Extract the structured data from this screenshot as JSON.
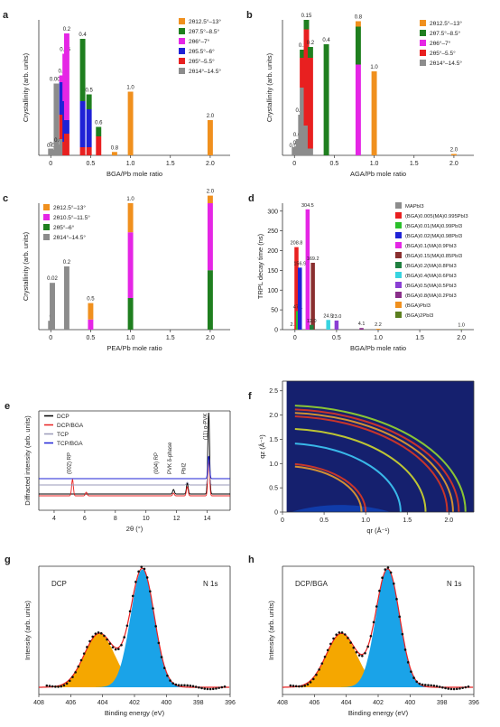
{
  "chart_data": [
    {
      "panel": "a",
      "type": "bar",
      "subtype": "stacked",
      "xlabel": "BGA/Pb mole ratio",
      "ylabel": "Crystallinity (arb. units)",
      "xlim": [
        -0.15,
        2.25
      ],
      "xticks": [
        "0",
        "0.5",
        "1.0",
        "1.5",
        "2.0"
      ],
      "legend_position": "top-right",
      "legend": [
        {
          "label": "2θ12.5°–13°",
          "color": "#f0901e"
        },
        {
          "label": "2θ7.5°–8.5°",
          "color": "#1f7f1f"
        },
        {
          "label": "2θ6°–7°",
          "color": "#e526e5"
        },
        {
          "label": "2θ5.5°–6°",
          "color": "#1f22d6"
        },
        {
          "label": "2θ5°–5.5°",
          "color": "#e82020"
        },
        {
          "label": "2θ14°–14.5°",
          "color": "#8c8c8c"
        }
      ],
      "series_order": [
        "2θ14°–14.5°",
        "2θ5°–5.5°",
        "2θ5.5°–6°",
        "2θ6°–7°",
        "2θ7.5°–8.5°",
        "2θ12.5°–13°"
      ],
      "ymax": 1.0,
      "bars": [
        {
          "label": "0",
          "x": 0.0,
          "stack": [
            0.05,
            0,
            0,
            0,
            0,
            0
          ]
        },
        {
          "label": "0.02",
          "x": 0.02,
          "stack": [
            0.04,
            0,
            0,
            0,
            0,
            0
          ]
        },
        {
          "label": "0.005",
          "x": 0.07,
          "stack": [
            0.53,
            0,
            0,
            0,
            0,
            0
          ]
        },
        {
          "label": "0.01",
          "x": 0.11,
          "stack": [
            0.08,
            0,
            0,
            0,
            0,
            0
          ]
        },
        {
          "label": "0.1",
          "x": 0.14,
          "stack": [
            0.12,
            0.18,
            0.24,
            0.05,
            0,
            0
          ]
        },
        {
          "label": "0.15",
          "x": 0.18,
          "stack": [
            0,
            0.1,
            0.3,
            0.35,
            0,
            0
          ]
        },
        {
          "label": "0.2",
          "x": 0.2,
          "stack": [
            0,
            0.16,
            0.1,
            0.64,
            0,
            0
          ]
        },
        {
          "label": "0.4",
          "x": 0.4,
          "stack": [
            0,
            0.06,
            0.34,
            0,
            0.46,
            0
          ]
        },
        {
          "label": "0.5",
          "x": 0.48,
          "stack": [
            0,
            0.06,
            0.28,
            0,
            0.11,
            0
          ]
        },
        {
          "label": "0.6",
          "x": 0.6,
          "stack": [
            0,
            0.14,
            0,
            0,
            0.07,
            0
          ]
        },
        {
          "label": "0.8",
          "x": 0.8,
          "stack": [
            0,
            0,
            0,
            0,
            0,
            0.025
          ]
        },
        {
          "label": "1.0",
          "x": 1.0,
          "stack": [
            0,
            0,
            0,
            0,
            0,
            0.47
          ]
        },
        {
          "label": "2.0",
          "x": 2.0,
          "stack": [
            0,
            0,
            0,
            0,
            0,
            0.26
          ]
        }
      ]
    },
    {
      "panel": "b",
      "type": "bar",
      "subtype": "stacked",
      "xlabel": "AGA/Pb mole ratio",
      "ylabel": "Crystallinity (arb. units)",
      "xlim": [
        -0.15,
        2.25
      ],
      "xticks": [
        "0",
        "0.5",
        "1.0",
        "1.5",
        "2.0"
      ],
      "legend_position": "top-right",
      "legend": [
        {
          "label": "2θ12.5°–13°",
          "color": "#f0901e"
        },
        {
          "label": "2θ7.5°–8.5°",
          "color": "#1f7f1f"
        },
        {
          "label": "2θ6°–7°",
          "color": "#e526e5"
        },
        {
          "label": "2θ5°–5.5°",
          "color": "#e82020"
        },
        {
          "label": "2θ14°–14.5°",
          "color": "#8c8c8c"
        }
      ],
      "series_order": [
        "2θ14°–14.5°",
        "2θ5°–5.5°",
        "2θ6°–7°",
        "2θ7.5°–8.5°",
        "2θ12.5°–13°"
      ],
      "ymax": 1.0,
      "bars": [
        {
          "label": "0",
          "x": 0.0,
          "stack": [
            0.06,
            0,
            0,
            0,
            0
          ]
        },
        {
          "label": "0.005",
          "x": 0.02,
          "stack": [
            0.04,
            0,
            0,
            0,
            0
          ]
        },
        {
          "label": "0.01",
          "x": 0.05,
          "stack": [
            0.12,
            0,
            0,
            0,
            0
          ]
        },
        {
          "label": "0.02",
          "x": 0.08,
          "stack": [
            0.3,
            0,
            0,
            0,
            0
          ]
        },
        {
          "label": "0.1",
          "x": 0.1,
          "stack": [
            0.5,
            0.22,
            0,
            0.06,
            0
          ]
        },
        {
          "label": "0.15",
          "x": 0.15,
          "stack": [
            0.22,
            0.71,
            0,
            0.07,
            0
          ]
        },
        {
          "label": "0.2",
          "x": 0.2,
          "stack": [
            0.05,
            0.67,
            0,
            0.08,
            0
          ]
        },
        {
          "label": "0.4",
          "x": 0.4,
          "stack": [
            0,
            0,
            0,
            0.82,
            0
          ]
        },
        {
          "label": "0.8",
          "x": 0.8,
          "stack": [
            0,
            0,
            0.67,
            0.28,
            0.04
          ]
        },
        {
          "label": "1.0",
          "x": 1.0,
          "stack": [
            0,
            0,
            0,
            0,
            0.62
          ]
        },
        {
          "label": "2.0",
          "x": 2.0,
          "stack": [
            0,
            0,
            0,
            0,
            0.01
          ]
        }
      ]
    },
    {
      "panel": "c",
      "type": "bar",
      "subtype": "stacked",
      "xlabel": "PEA/Pb mole ratio",
      "ylabel": "Crystallinity (arb. units)",
      "xlim": [
        -0.15,
        2.25
      ],
      "xticks": [
        "0",
        "0.5",
        "1.0",
        "1.5",
        "2.0"
      ],
      "legend_position": "top-left",
      "legend": [
        {
          "label": "2θ12.5°–13°",
          "color": "#f0901e"
        },
        {
          "label": "2θ10.5°–11.5°",
          "color": "#e526e5"
        },
        {
          "label": "2θ5°–6°",
          "color": "#1f7f1f"
        },
        {
          "label": "2θ14°–14.5°",
          "color": "#8c8c8c"
        }
      ],
      "series_order": [
        "2θ14°–14.5°",
        "2θ5°–6°",
        "2θ10.5°–11.5°",
        "2θ12.5°–13°"
      ],
      "ymax": 1.0,
      "bars": [
        {
          "label": "0",
          "x": 0.0,
          "stack": [
            0.07,
            0,
            0,
            0
          ]
        },
        {
          "label": "0.02",
          "x": 0.02,
          "stack": [
            0.37,
            0,
            0,
            0
          ]
        },
        {
          "label": "0.2",
          "x": 0.2,
          "stack": [
            0.5,
            0,
            0,
            0
          ]
        },
        {
          "label": "0.5",
          "x": 0.5,
          "stack": [
            0,
            0,
            0.08,
            0.13
          ]
        },
        {
          "label": "1.0",
          "x": 1.0,
          "stack": [
            0,
            0.25,
            0.52,
            0.23
          ]
        },
        {
          "label": "2.0",
          "x": 2.0,
          "stack": [
            0,
            0.47,
            0.53,
            0.06
          ]
        }
      ]
    },
    {
      "panel": "d",
      "type": "bar",
      "xlabel": "BGA/Pb mole ratio",
      "ylabel": "TRPL decay time (ns)",
      "xlim": [
        -0.15,
        2.15
      ],
      "ylim": [
        0,
        320
      ],
      "yticks": [
        "0",
        "50",
        "100",
        "150",
        "200",
        "250",
        "300"
      ],
      "xticks": [
        "0",
        "0.5",
        "1.0",
        "1.5",
        "2.0"
      ],
      "legend_position": "top-right",
      "bars": [
        {
          "sub": "MAPbI3",
          "x": 0.0,
          "value": 2.31,
          "label": "2.31",
          "color": "#8c8c8c"
        },
        {
          "sub": "(BGA)0.005(MA)0.995PbI3",
          "x": 0.005,
          "value": 208.8,
          "label": "208.8",
          "color": "#e82020"
        },
        {
          "sub": "(BGA)0.01(MA)0.99PbI3",
          "x": 0.01,
          "value": 47.1,
          "label": "47.1",
          "color": "#2ac02a"
        },
        {
          "sub": "(BGA)0.02(MA)0.98PbI3",
          "x": 0.02,
          "value": 156.9,
          "label": "156.9",
          "color": "#1f22d6"
        },
        {
          "sub": "(BGA)0.1(MA)0.9PbI3",
          "x": 0.1,
          "value": 304.5,
          "label": "304.5",
          "color": "#e526e5"
        },
        {
          "sub": "(BGA)0.15(MA)0.85PbI3",
          "x": 0.15,
          "value": 169.2,
          "label": "169.2",
          "color": "#8a2f2f"
        },
        {
          "sub": "(BGA)0.2(MA)0.8PbI3",
          "x": 0.2,
          "value": 12.0,
          "label": "12.0",
          "color": "#1f7f3f"
        },
        {
          "sub": "(BGA)0.4(MA)0.6PbI3",
          "x": 0.4,
          "value": 24.5,
          "label": "24.5",
          "color": "#38d4e0"
        },
        {
          "sub": "(BGA)0.5(MA)0.5PbI3",
          "x": 0.5,
          "value": 23.0,
          "label": "23.0",
          "color": "#8a3fd4"
        },
        {
          "sub": "(BGA)0.8(MA)0.2PbI3",
          "x": 0.8,
          "value": 4.1,
          "label": "4.1",
          "color": "#8a2f8a"
        },
        {
          "sub": "(BGA)PbI3",
          "x": 1.0,
          "value": 2.2,
          "label": "2.2",
          "color": "#f0901e"
        },
        {
          "sub": "(BGA)2PbI3",
          "x": 2.0,
          "value": 1.0,
          "label": "1.0",
          "color": "#5b7f1f"
        }
      ]
    },
    {
      "panel": "e",
      "type": "line",
      "xlabel": "2θ (°)",
      "ylabel": "Diffracted intensity (arb. units)",
      "xlim": [
        3,
        15.5
      ],
      "xticks": [
        "4",
        "6",
        "8",
        "10",
        "12",
        "14"
      ],
      "legend_position": "top-left",
      "series": [
        {
          "name": "DCP",
          "color": "#000000"
        },
        {
          "name": "DCP/BGA",
          "color": "#e82020"
        },
        {
          "name": "TCP",
          "color": "#9a9ab8"
        },
        {
          "name": "TCP/BGA",
          "color": "#1f22d6"
        }
      ],
      "annotations": [
        "(002) RP",
        "(004) RP",
        "PVK δ-phase",
        "PbI2",
        "(11) α-PVK"
      ],
      "peaks_theta": [
        5.2,
        10.9,
        11.8,
        12.7,
        14.1
      ]
    },
    {
      "panel": "f",
      "type": "heatmap",
      "xlabel": "qr (Å⁻¹)",
      "ylabel": "qz (Å⁻¹)",
      "xlim": [
        0,
        2.3
      ],
      "ylim": [
        0,
        2.7
      ],
      "xticks": [
        "0",
        "0.5",
        "1.0",
        "1.5",
        "2.0"
      ],
      "yticks": [
        "0",
        "0.5",
        "1.0",
        "1.5",
        "2.0",
        "2.5"
      ],
      "rings_q": [
        0.95,
        1.0,
        1.42,
        1.72,
        1.98,
        2.05,
        2.12,
        2.2
      ]
    },
    {
      "panel": "g",
      "type": "line",
      "xlabel": "Binding energy (eV)",
      "ylabel": "Intensity (arb. units)",
      "xlim_reversed": [
        408,
        396
      ],
      "xticks": [
        "408",
        "406",
        "404",
        "402",
        "400",
        "398",
        "396"
      ],
      "sample_label": "DCP",
      "region_label": "N 1s",
      "peaks_eV": [
        401.5,
        404.2
      ]
    },
    {
      "panel": "h",
      "type": "line",
      "xlabel": "Binding energy (eV)",
      "ylabel": "Intensity (arb. units)",
      "xlim_reversed": [
        408,
        396
      ],
      "xticks": [
        "408",
        "406",
        "404",
        "402",
        "400",
        "398",
        "396"
      ],
      "sample_label": "DCP/BGA",
      "region_label": "N 1s",
      "peaks_eV": [
        401.4,
        404.3
      ]
    }
  ]
}
